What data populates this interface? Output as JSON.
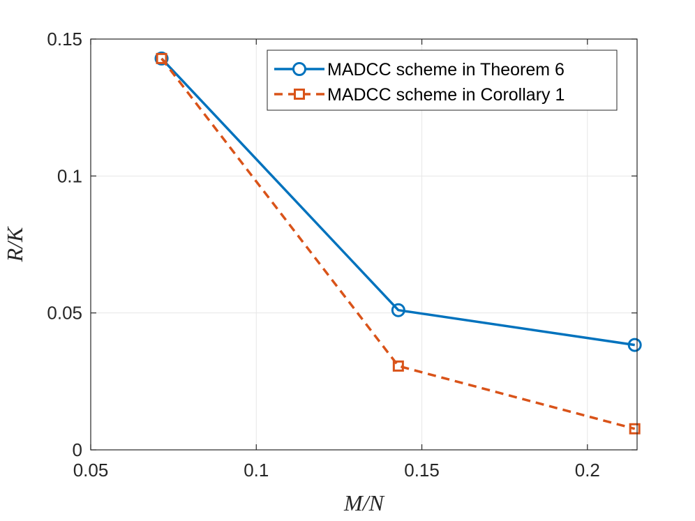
{
  "chart_data": {
    "type": "line",
    "title": "",
    "xlabel": "M/N",
    "ylabel": "R/K",
    "xlim": [
      0.05,
      0.215
    ],
    "ylim": [
      0,
      0.15
    ],
    "xticks": [
      0.05,
      0.1,
      0.15,
      0.2
    ],
    "xtick_labels": [
      "0.05",
      "0.1",
      "0.15",
      "0.2"
    ],
    "yticks": [
      0,
      0.05,
      0.1,
      0.15
    ],
    "ytick_labels": [
      "0",
      "0.05",
      "0.1",
      "0.15"
    ],
    "grid": true,
    "legend_position": "top-right",
    "series": [
      {
        "name": "MADCC scheme in Theorem 6",
        "color": "#0072bd",
        "line_style": "solid",
        "marker": "circle",
        "x": [
          0.0714,
          0.1429,
          0.2143
        ],
        "y": [
          0.1429,
          0.051,
          0.0383
        ]
      },
      {
        "name": "MADCC scheme in Corollary 1",
        "color": "#d95319",
        "line_style": "dashed",
        "marker": "square",
        "x": [
          0.0714,
          0.1429,
          0.2143
        ],
        "y": [
          0.1429,
          0.0306,
          0.0077
        ]
      }
    ]
  }
}
